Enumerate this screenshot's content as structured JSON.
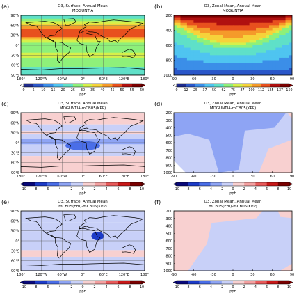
{
  "colors": {
    "abs_scale": [
      "#ffffff",
      "#1e2a8c",
      "#2a57c9",
      "#3b8ee8",
      "#4fc4f0",
      "#5fe0c8",
      "#8ef07a",
      "#d6f04a",
      "#f6d23a",
      "#f59a2a",
      "#e8501e",
      "#b01010",
      "#7a0000"
    ],
    "diff_scale": [
      "#08087a",
      "#1c3bc8",
      "#4a6ee8",
      "#8ea4f4",
      "#c8d0f8",
      "#f8d0d0",
      "#f4a0a0",
      "#e85a5a",
      "#c81818",
      "#7a0000"
    ],
    "land_line": "#000000",
    "grid_line": "#555555"
  },
  "chart_data": [
    {
      "id": "a",
      "panel_label": "(a)",
      "type": "heatmap",
      "title": "O3, Surface, Annual Mean",
      "subtitle": "MOGUNTIA",
      "x_ticks": [
        "180°",
        "120°W",
        "60°W",
        "0°",
        "60°E",
        "120°E",
        "180°"
      ],
      "y_ticks": [
        "90°N",
        "60°N",
        "30°N",
        "0°",
        "30°S",
        "60°S",
        "90°S"
      ],
      "colorbar": {
        "ticks": [
          "0",
          "5",
          "10",
          "15",
          "20",
          "25",
          "30",
          "35",
          "40",
          "45",
          "50",
          "55",
          "60"
        ],
        "label": "ppb",
        "min": 0,
        "max": 60
      },
      "zonal_profile": [
        {
          "lat": 90,
          "value": 22
        },
        {
          "lat": 75,
          "value": 30
        },
        {
          "lat": 60,
          "value": 40
        },
        {
          "lat": 45,
          "value": 50
        },
        {
          "lat": 30,
          "value": 52
        },
        {
          "lat": 15,
          "value": 38
        },
        {
          "lat": 0,
          "value": 28
        },
        {
          "lat": -15,
          "value": 30
        },
        {
          "lat": -30,
          "value": 35
        },
        {
          "lat": -45,
          "value": 30
        },
        {
          "lat": -60,
          "value": 28
        },
        {
          "lat": -75,
          "value": 26
        },
        {
          "lat": -90,
          "value": 24
        }
      ]
    },
    {
      "id": "b",
      "panel_label": "(b)",
      "type": "heatmap",
      "title": "O3, Zonal Mean, Annual Mean",
      "subtitle": "MOGUNTIA",
      "x_ticks": [
        "-90",
        "-60",
        "-30",
        "0",
        "30",
        "60",
        "90"
      ],
      "y_ticks": [
        "200",
        "400",
        "600",
        "800",
        "1000"
      ],
      "colorbar": {
        "ticks": [
          "0",
          "12",
          "25",
          "37",
          "50",
          "62",
          "75",
          "87",
          "100",
          "112",
          "125",
          "137",
          "150"
        ],
        "label": "ppb",
        "min": 0,
        "max": 150
      }
    },
    {
      "id": "c",
      "panel_label": "(c)",
      "type": "heatmap",
      "title": "O3, Surface, Annual Mean",
      "subtitle": "MOGUNTIA-mCB05(KPP)",
      "x_ticks": [
        "180°",
        "120°W",
        "60°W",
        "0°",
        "60°E",
        "120°E",
        "180°"
      ],
      "y_ticks": [
        "90°N",
        "60°N",
        "30°N",
        "0°",
        "30°S",
        "60°S",
        "90°S"
      ],
      "colorbar": {
        "ticks": [
          "-10",
          "-8",
          "-6",
          "-4",
          "-2",
          "0",
          "2",
          "4",
          "6",
          "8",
          "10"
        ],
        "label": "ppb",
        "min": -10,
        "max": 10
      },
      "bands": [
        {
          "lat_top": 90,
          "lat_bottom": 55,
          "value": 1
        },
        {
          "lat_top": 55,
          "lat_bottom": 35,
          "value": -1
        },
        {
          "lat_top": 35,
          "lat_bottom": 25,
          "value": 1
        },
        {
          "lat_top": 25,
          "lat_bottom": 12,
          "value": -1
        },
        {
          "lat_top": 12,
          "lat_bottom": -5,
          "value": -3
        },
        {
          "lat_top": -5,
          "lat_bottom": -40,
          "value": -1
        },
        {
          "lat_top": -40,
          "lat_bottom": -90,
          "value": 1
        }
      ]
    },
    {
      "id": "d",
      "panel_label": "(d)",
      "type": "heatmap",
      "title": "O3, Zonal Mean, Annual Mean",
      "subtitle": "MOGUNTIA-mCB05(KPP)",
      "x_ticks": [
        "-90",
        "-60",
        "-30",
        "0",
        "30",
        "60",
        "90"
      ],
      "y_ticks": [
        "200",
        "300",
        "400",
        "500",
        "600",
        "700",
        "800",
        "900",
        "1000"
      ],
      "colorbar": {
        "ticks": [
          "-10",
          "-8",
          "-6",
          "-4",
          "-2",
          "0",
          "2",
          "4",
          "6",
          "8",
          "10"
        ],
        "label": "ppb",
        "min": -10,
        "max": 10
      }
    },
    {
      "id": "e",
      "panel_label": "(e)",
      "type": "heatmap",
      "title": "O3, Surface, Annual Mean",
      "subtitle": "mCB05(EBI)-mCB05(KPP)",
      "x_ticks": [
        "180°",
        "120°W",
        "60°W",
        "0°",
        "60°E",
        "120°E",
        "180°"
      ],
      "y_ticks": [
        "90°N",
        "60°N",
        "30°N",
        "0°",
        "30°S",
        "60°S",
        "90°S"
      ],
      "colorbar": {
        "ticks": [
          "-10",
          "-8",
          "-6",
          "-4",
          "-2",
          "0",
          "2",
          "4",
          "6",
          "8",
          "10"
        ],
        "label": "ppb",
        "min": -10,
        "max": 10
      },
      "bands": [
        {
          "lat_top": 90,
          "lat_bottom": 55,
          "value": -1
        },
        {
          "lat_top": 55,
          "lat_bottom": 28,
          "value": -1
        },
        {
          "lat_top": 28,
          "lat_bottom": 5,
          "value": -1
        },
        {
          "lat_top": 5,
          "lat_bottom": -28,
          "value": -1
        },
        {
          "lat_top": -28,
          "lat_bottom": -48,
          "value": 1
        },
        {
          "lat_top": -48,
          "lat_bottom": -90,
          "value": -1
        }
      ]
    },
    {
      "id": "f",
      "panel_label": "(f)",
      "type": "heatmap",
      "title": "O3, Zonal Mean, Annual Mean",
      "subtitle": "mCB05(EBI)-mCB05(KPP)",
      "x_ticks": [
        "-90",
        "-60",
        "-30",
        "0",
        "30",
        "60",
        "90"
      ],
      "y_ticks": [
        "200",
        "300",
        "400",
        "500",
        "600",
        "700",
        "800",
        "900",
        "1000"
      ],
      "colorbar": {
        "ticks": [
          "-10",
          "-8",
          "-6",
          "-4",
          "-2",
          "0",
          "2",
          "4",
          "6",
          "8",
          "10"
        ],
        "label": "ppb",
        "min": -10,
        "max": 10
      }
    }
  ]
}
